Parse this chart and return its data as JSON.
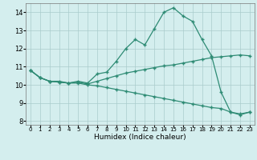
{
  "xlabel": "Humidex (Indice chaleur)",
  "x": [
    0,
    1,
    2,
    3,
    4,
    5,
    6,
    7,
    8,
    9,
    10,
    11,
    12,
    13,
    14,
    15,
    16,
    17,
    18,
    19,
    20,
    21,
    22,
    23
  ],
  "line1": [
    10.8,
    10.4,
    10.2,
    10.2,
    10.1,
    10.2,
    10.1,
    10.6,
    10.7,
    11.3,
    12.0,
    12.5,
    12.2,
    13.1,
    14.0,
    14.25,
    13.8,
    13.5,
    12.5,
    11.6,
    9.6,
    8.5,
    8.4,
    8.5
  ],
  "line2": [
    10.8,
    10.4,
    10.2,
    10.15,
    10.1,
    10.15,
    10.05,
    10.2,
    10.35,
    10.5,
    10.65,
    10.75,
    10.85,
    10.95,
    11.05,
    11.1,
    11.2,
    11.3,
    11.4,
    11.5,
    11.55,
    11.6,
    11.65,
    11.6
  ],
  "line3": [
    10.8,
    10.4,
    10.2,
    10.15,
    10.1,
    10.1,
    10.0,
    9.95,
    9.85,
    9.75,
    9.65,
    9.55,
    9.45,
    9.35,
    9.25,
    9.15,
    9.05,
    8.95,
    8.85,
    8.75,
    8.7,
    8.5,
    8.35,
    8.5
  ],
  "line_color": "#2e8b74",
  "bg_color": "#d4eeee",
  "grid_color": "#aacccc",
  "ylim": [
    7.8,
    14.5
  ],
  "yticks": [
    8,
    9,
    10,
    11,
    12,
    13,
    14
  ],
  "xlim": [
    -0.5,
    23.5
  ]
}
